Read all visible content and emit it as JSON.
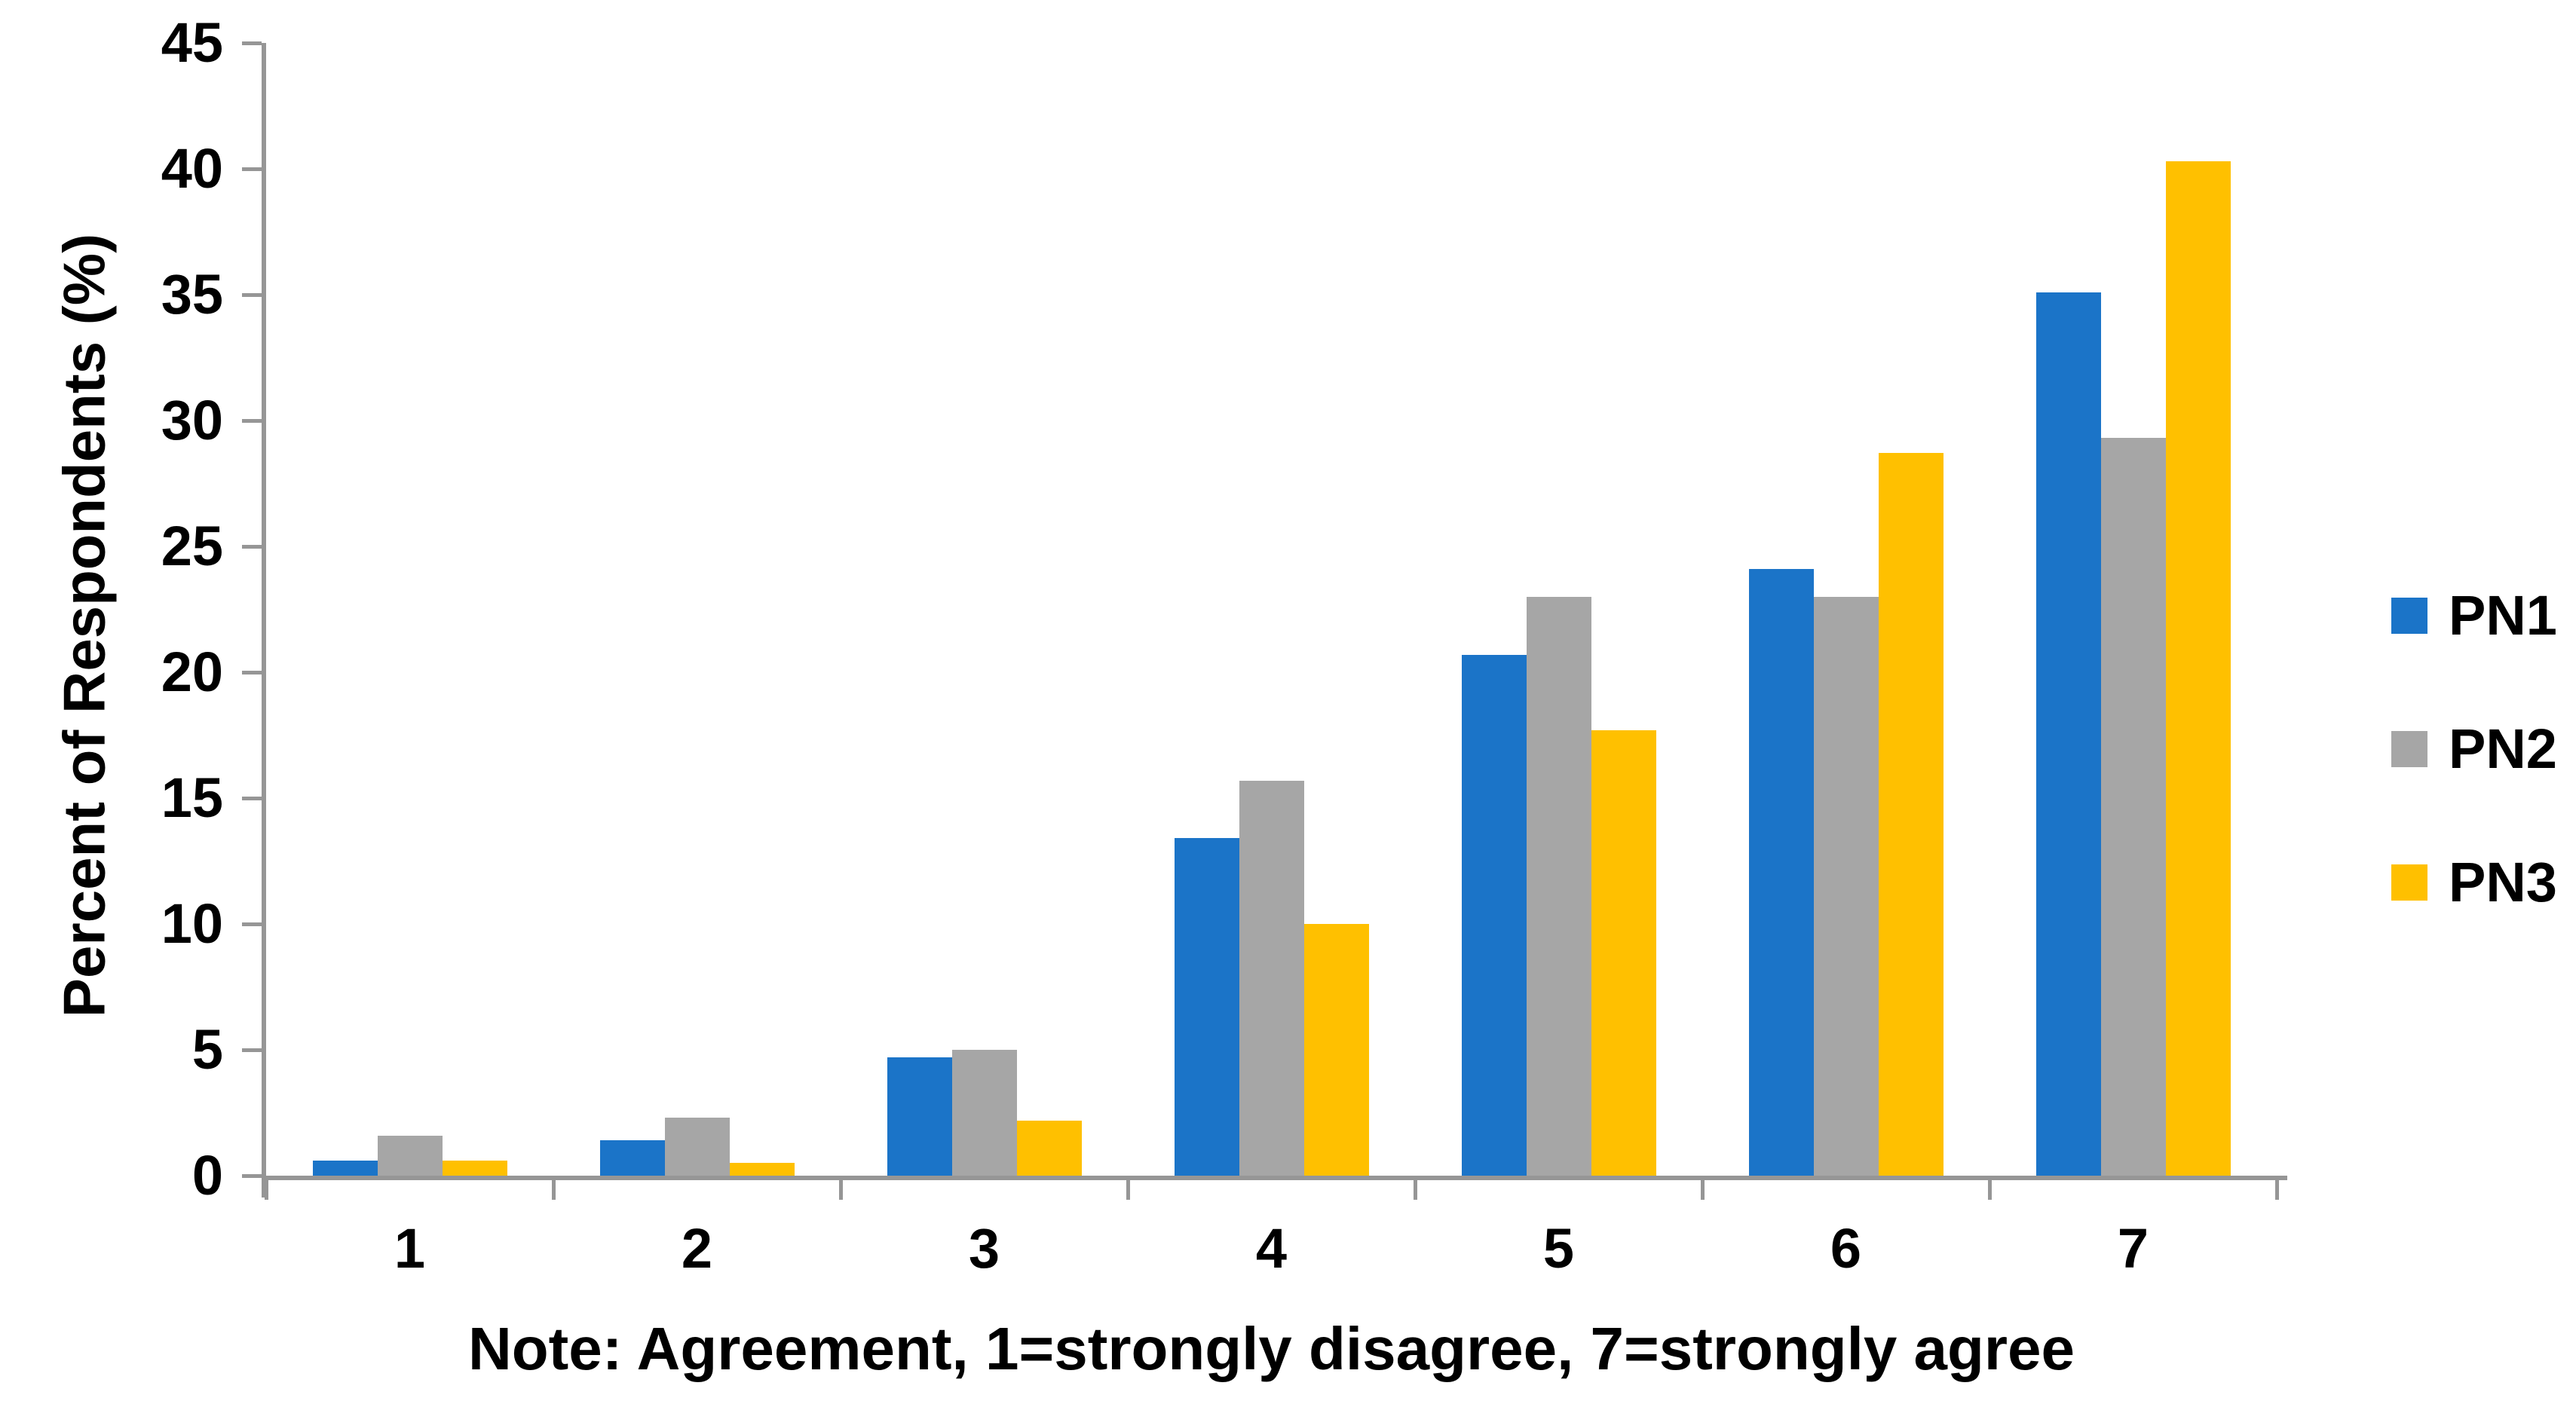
{
  "chart_data": {
    "type": "bar",
    "title": "",
    "ylabel": "Percent of Respondents (%)",
    "note": "Note: Agreement, 1=strongly disagree, 7=strongly agree",
    "categories": [
      "1",
      "2",
      "3",
      "4",
      "5",
      "6",
      "7"
    ],
    "series": [
      {
        "name": "PN1",
        "color": "#1B74C8",
        "values": [
          0.6,
          1.4,
          4.7,
          13.4,
          20.7,
          24.1,
          35.1
        ]
      },
      {
        "name": "PN2",
        "color": "#A6A6A6",
        "values": [
          1.6,
          2.3,
          5.0,
          15.7,
          23.0,
          23.0,
          29.3
        ]
      },
      {
        "name": "PN3",
        "color": "#FFC000",
        "values": [
          0.6,
          0.5,
          2.2,
          10.0,
          17.7,
          28.7,
          40.3
        ]
      }
    ],
    "ylim": [
      0,
      45
    ],
    "yticks": [
      45,
      40,
      35,
      30,
      25,
      20,
      15,
      10,
      5,
      0
    ],
    "grid": false,
    "legend_position": "right",
    "axis_color": "#969696",
    "text_color": "#000000",
    "background_color": "#FFFFFF"
  }
}
